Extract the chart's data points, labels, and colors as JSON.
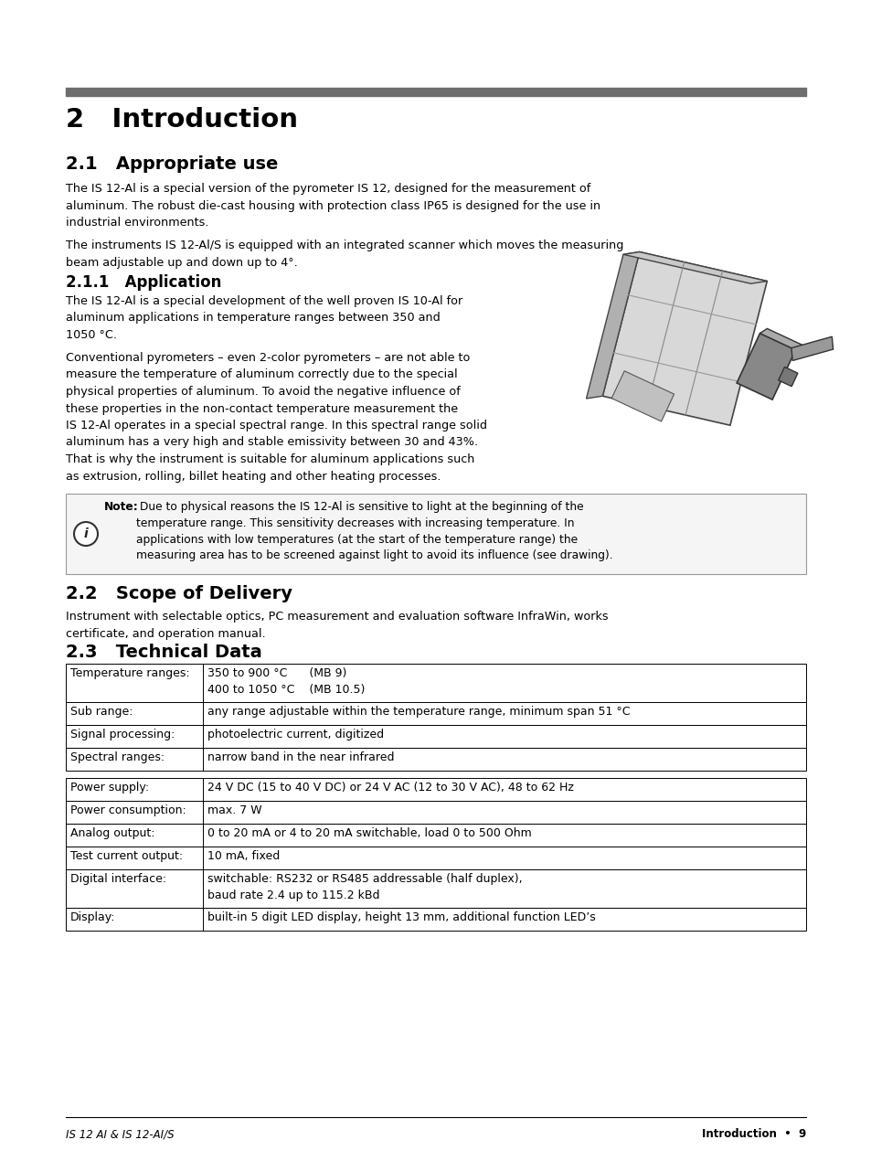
{
  "page_bg": "#ffffff",
  "header_bar_color": "#6d6d6d",
  "chapter_title": "2   Introduction",
  "section_21_title": "2.1   Appropriate use",
  "section_21_body1": "The IS 12-Al is a special version of the pyrometer IS 12, designed for the measurement of\naluminum. The robust die-cast housing with protection class IP65 is designed for the use in\nindustrial environments.",
  "section_21_body2": "The instruments IS 12-Al/S is equipped with an integrated scanner which moves the measuring\nbeam adjustable up and down up to 4°.",
  "section_211_title": "2.1.1   Application",
  "section_211_body1": "The IS 12-Al is a special development of the well proven IS 10-Al for\naluminum applications in temperature ranges between 350 and\n1050 °C.",
  "section_211_body2": "Conventional pyrometers – even 2-color pyrometers – are not able to\nmeasure the temperature of aluminum correctly due to the special\nphysical properties of aluminum. To avoid the negative influence of\nthese properties in the non-contact temperature measurement the\nIS 12-Al operates in a special spectral range. In this spectral range solid\naluminum has a very high and stable emissivity between 30 and 43%.\nThat is why the instrument is suitable for aluminum applications such\nas extrusion, rolling, billet heating and other heating processes.",
  "note_bold": "Note:",
  "note_rest": " Due to physical reasons the IS 12-Al is sensitive to light at the beginning of the\ntemperature range. This sensitivity decreases with increasing temperature. In\napplications with low temperatures (at the start of the temperature range) the\nmeasuring area has to be screened against light to avoid its influence (see drawing).",
  "section_22_title": "2.2   Scope of Delivery",
  "section_22_body": "Instrument with selectable optics, PC measurement and evaluation software InfraWin, works\ncertificate, and operation manual.",
  "section_23_title": "2.3   Technical Data",
  "table1": [
    [
      "Temperature ranges:",
      "350 to 900 °C      (MB 9)\n400 to 1050 °C    (MB 10.5)"
    ],
    [
      "Sub range:",
      "any range adjustable within the temperature range, minimum span 51 °C"
    ],
    [
      "Signal processing:",
      "photoelectric current, digitized"
    ],
    [
      "Spectral ranges:",
      "narrow band in the near infrared"
    ]
  ],
  "table2": [
    [
      "Power supply:",
      "24 V DC (15 to 40 V DC) or 24 V AC (12 to 30 V AC), 48 to 62 Hz"
    ],
    [
      "Power consumption:",
      "max. 7 W"
    ],
    [
      "Analog output:",
      "0 to 20 mA or 4 to 20 mA switchable, load 0 to 500 Ohm"
    ],
    [
      "Test current output:",
      "10 mA, fixed"
    ],
    [
      "Digital interface:",
      "switchable: RS232 or RS485 addressable (half duplex),\nbaud rate 2.4 up to 115.2 kBd"
    ],
    [
      "Display:",
      "built-in 5 digit LED display, height 13 mm, additional function LED’s"
    ]
  ],
  "footer_left": "IS 12 AI & IS 12-AI/S",
  "footer_right": "Introduction  •  9"
}
